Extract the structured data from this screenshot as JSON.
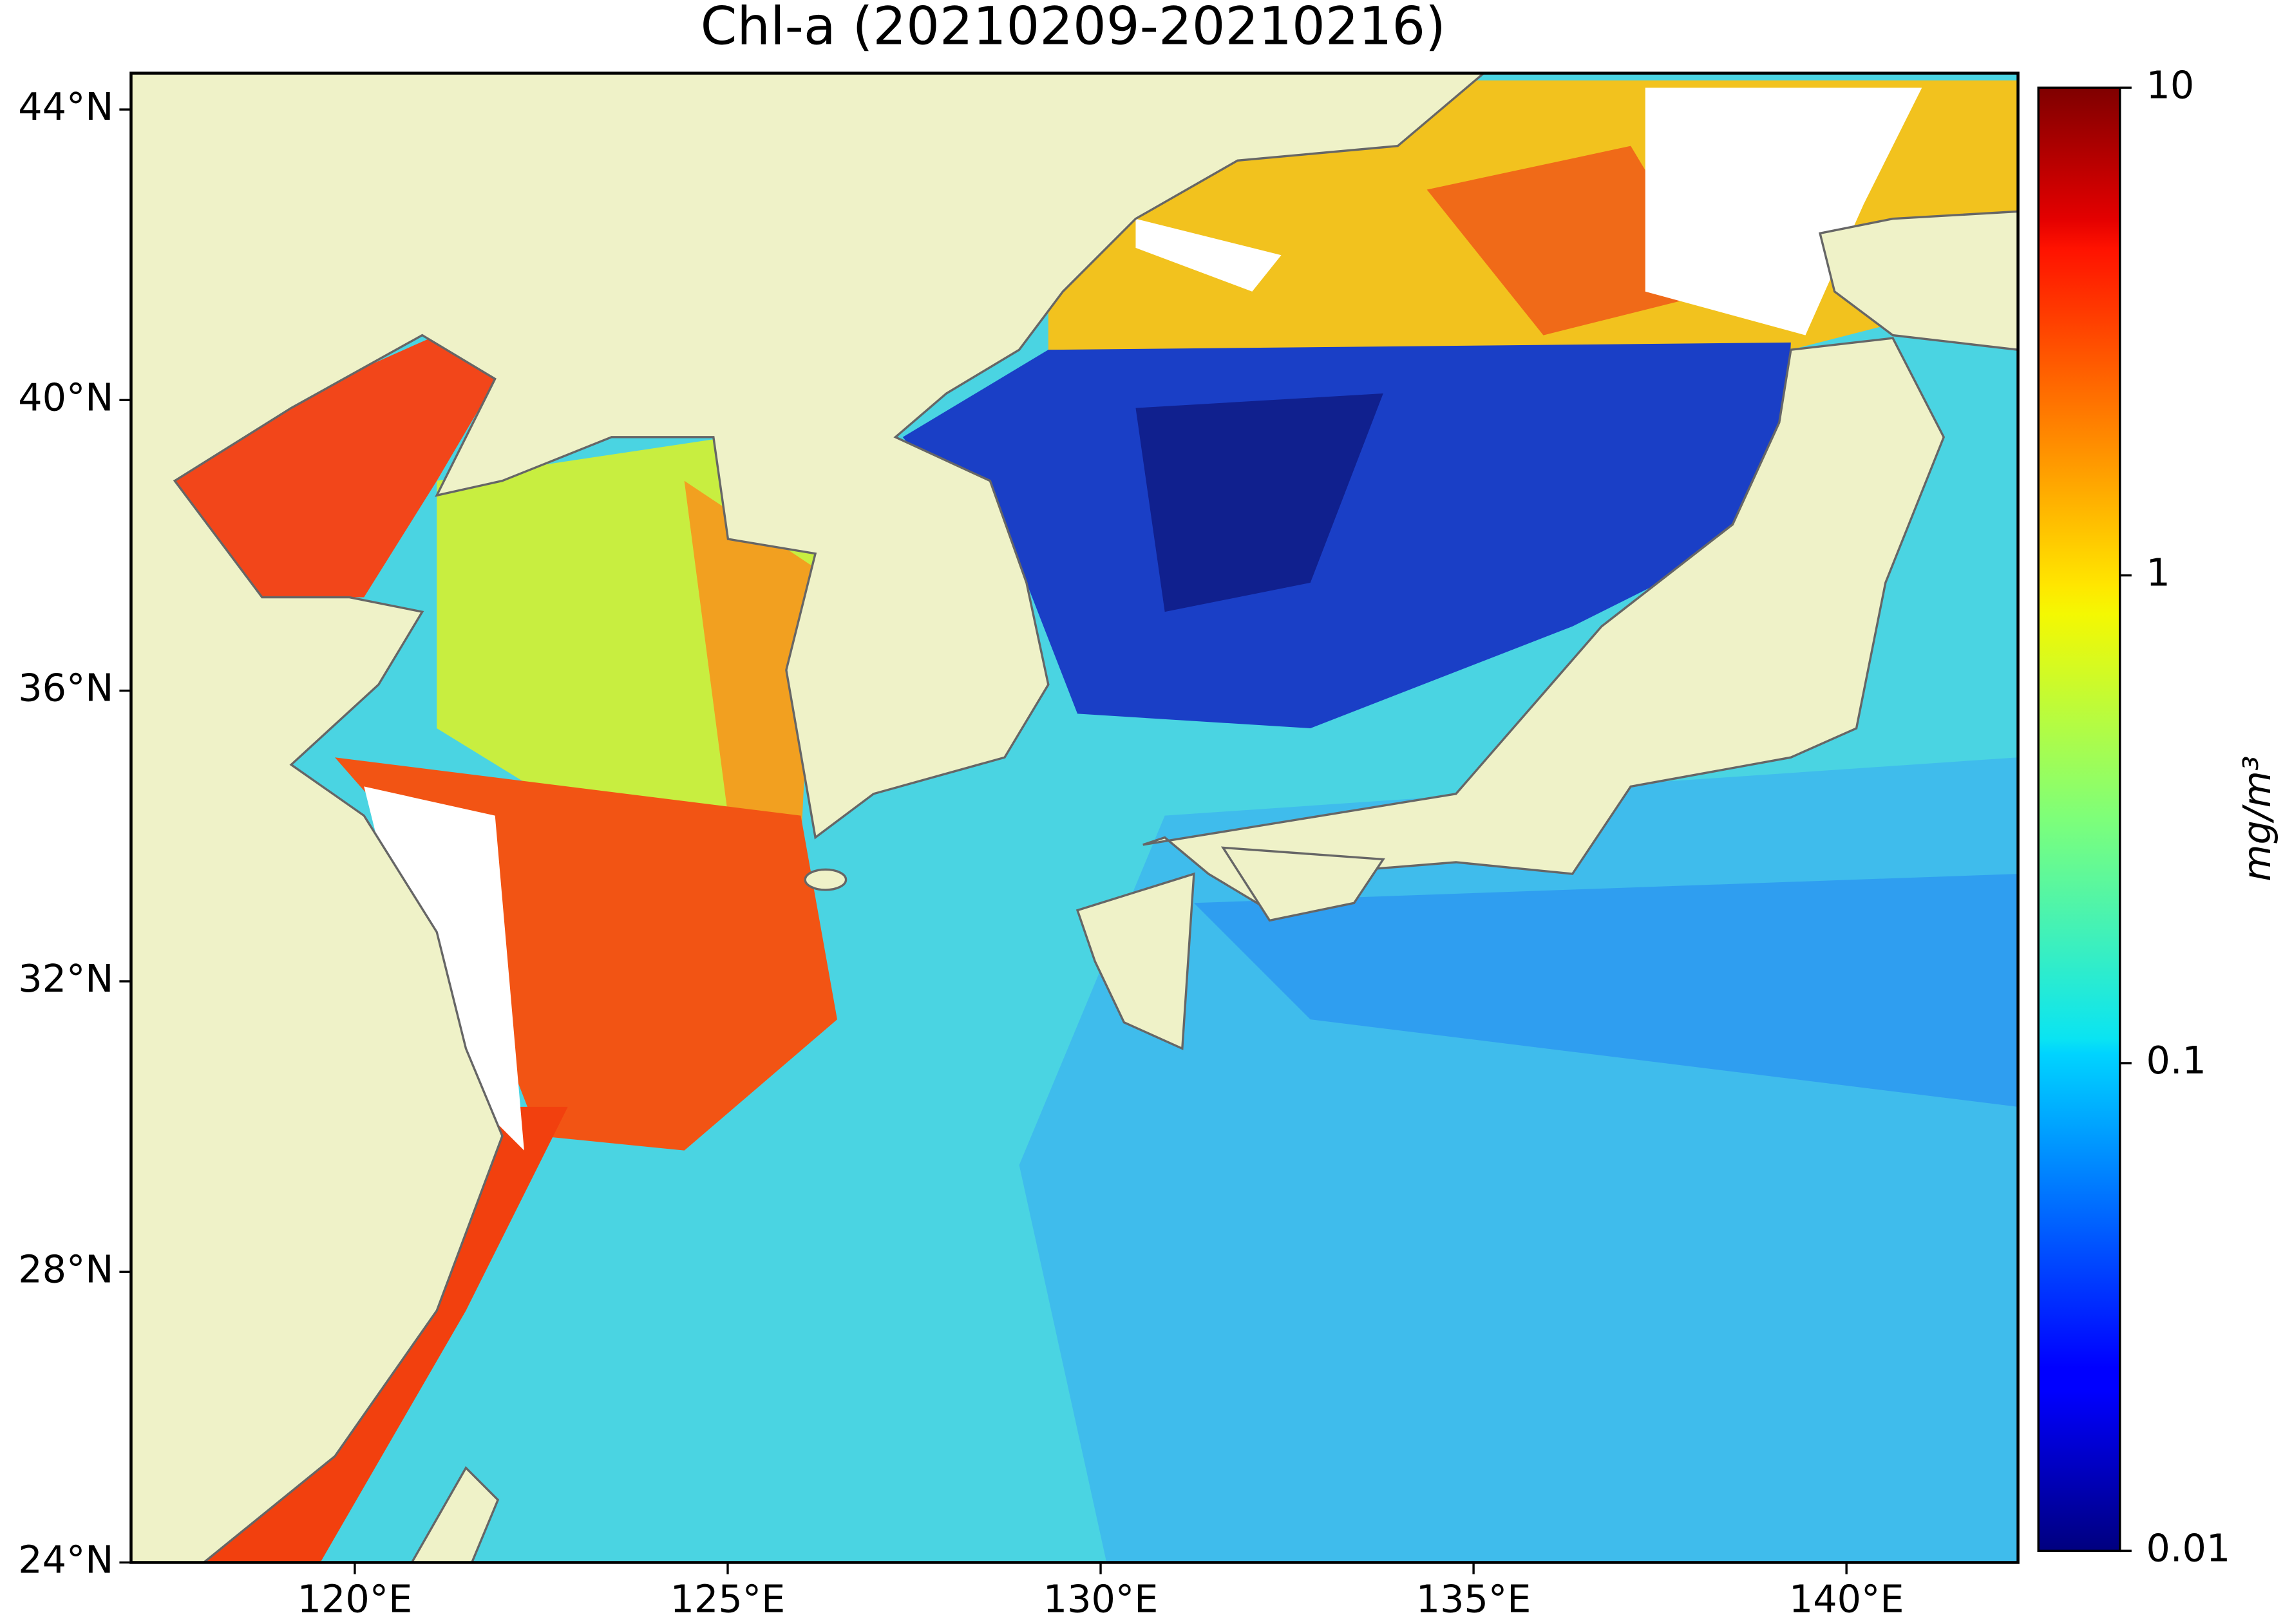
{
  "title": "Chl-a (20210209-20210216)",
  "map": {
    "xlim": [
      117,
      142.3
    ],
    "ylim": [
      24,
      44.5
    ],
    "xticks": [
      {
        "value": 120,
        "label": "120°E"
      },
      {
        "value": 125,
        "label": "125°E"
      },
      {
        "value": 130,
        "label": "130°E"
      },
      {
        "value": 135,
        "label": "135°E"
      },
      {
        "value": 140,
        "label": "140°E"
      }
    ],
    "yticks": [
      {
        "value": 24,
        "label": "24°N"
      },
      {
        "value": 28,
        "label": "28°N"
      },
      {
        "value": 32,
        "label": "32°N"
      },
      {
        "value": 36,
        "label": "36°N"
      },
      {
        "value": 40,
        "label": "40°N"
      },
      {
        "value": 44,
        "label": "44°N"
      }
    ]
  },
  "colorbar": {
    "label": "mg/m³",
    "scale": "log",
    "colormap": "jet",
    "lim": [
      0.01,
      10
    ],
    "ticks": [
      0.01,
      0.1,
      1,
      10
    ]
  }
}
